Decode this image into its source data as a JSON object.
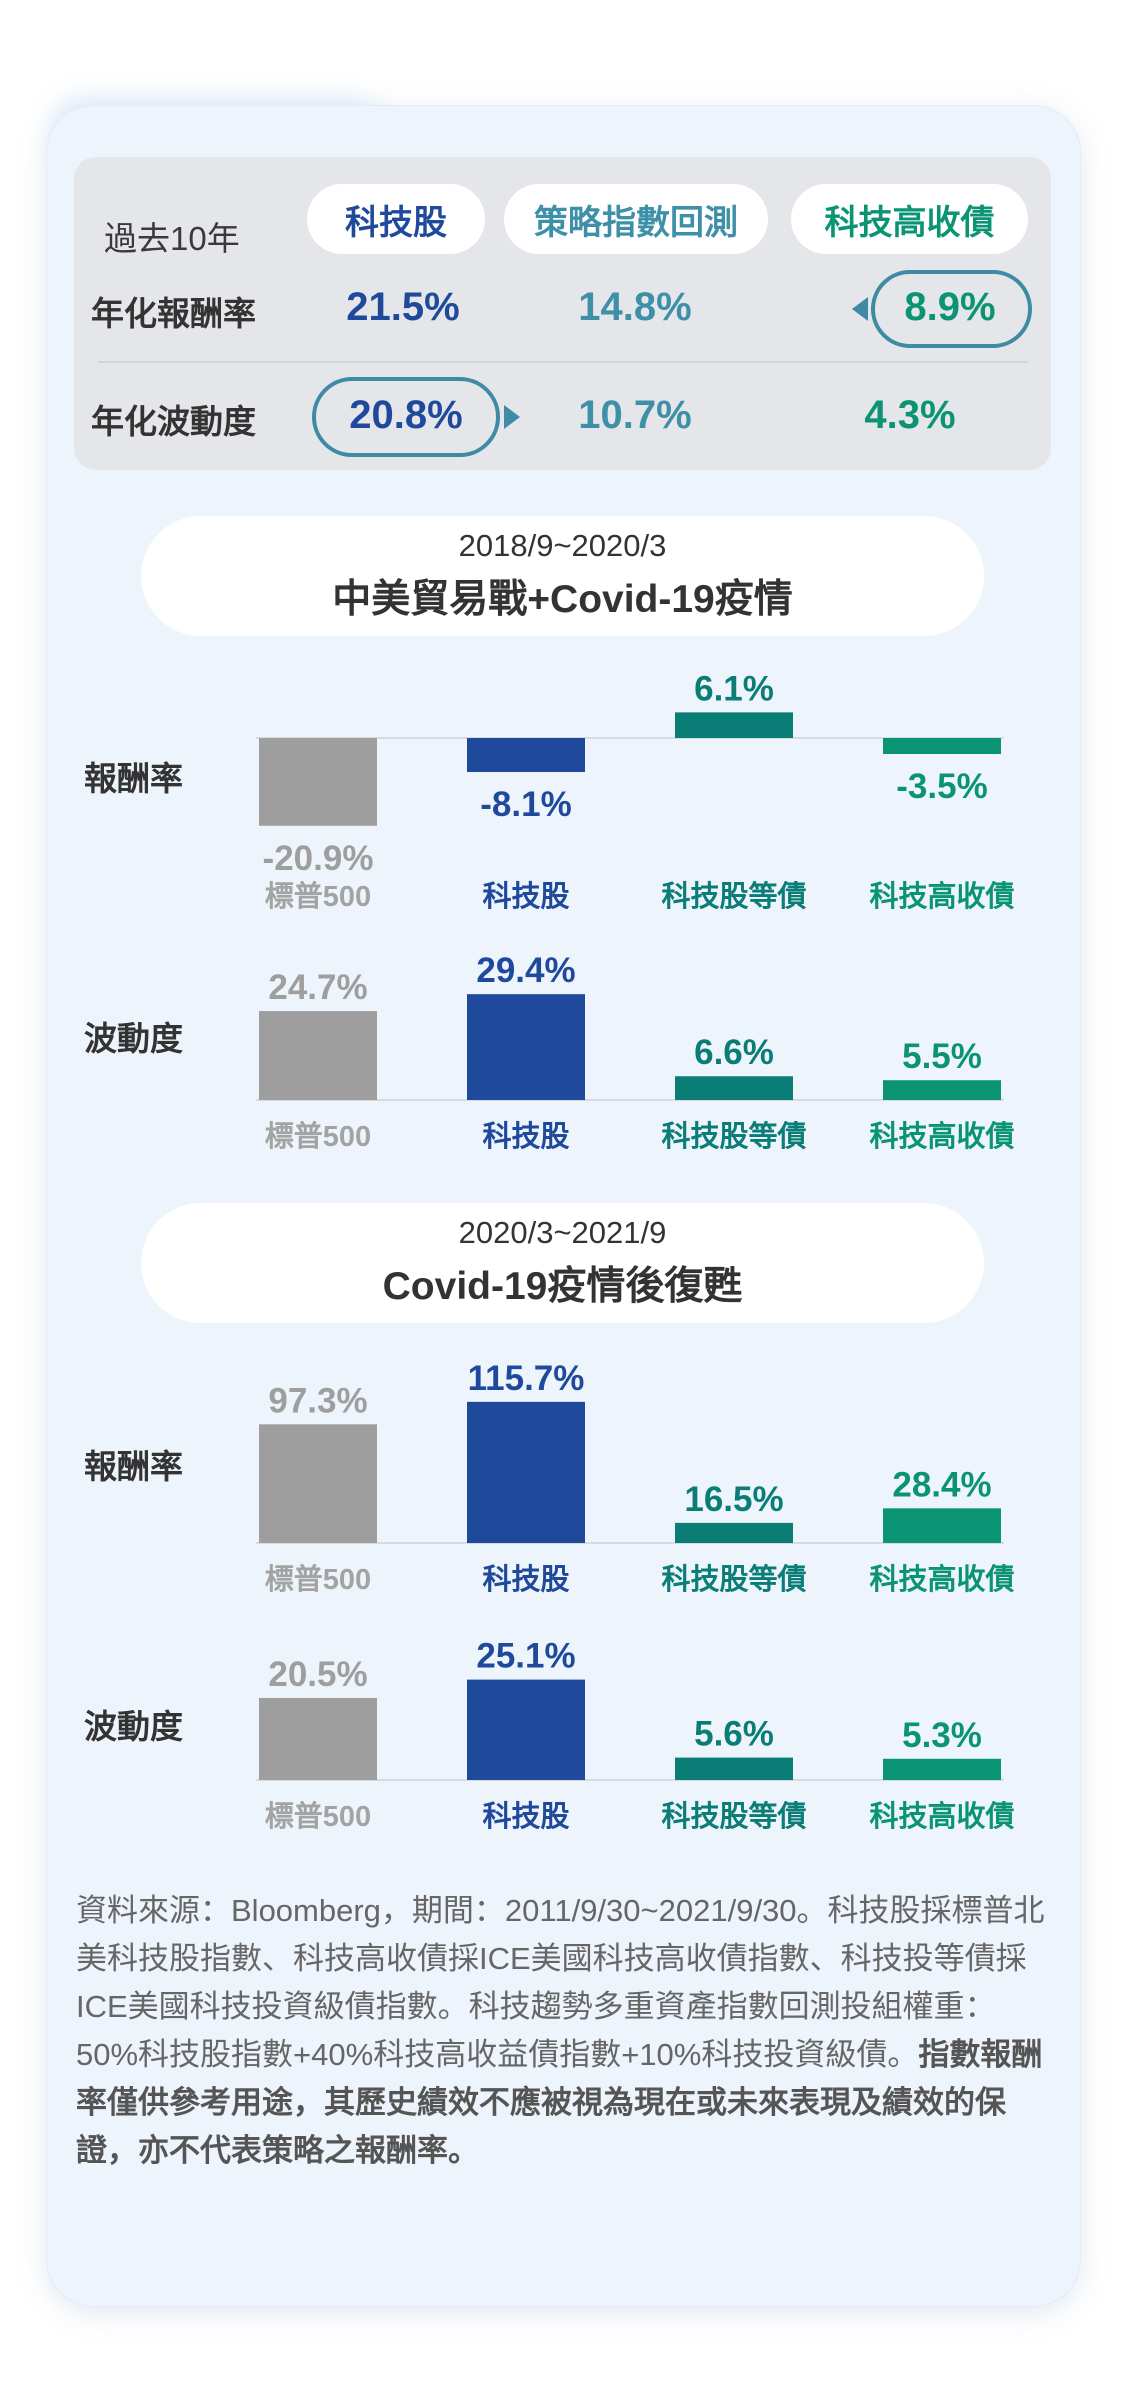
{
  "colors": {
    "sp500": "#9e9e9e",
    "tech": "#1f4a9c",
    "ig_bond": "#0b7d77",
    "hy_bond": "#0a9474",
    "strategy": "#3e8fa8",
    "highlight": "#3f8aa5"
  },
  "summary": {
    "period_label": "過去10年",
    "headers": [
      "科技股",
      "策略指數回測",
      "科技高收債"
    ],
    "rows": [
      {
        "label": "年化報酬率",
        "values": [
          "21.5%",
          "14.8%",
          "8.9%"
        ]
      },
      {
        "label": "年化波動度",
        "values": [
          "20.8%",
          "10.7%",
          "4.3%"
        ]
      }
    ]
  },
  "sections": [
    {
      "dates": "2018/9~2020/3",
      "title": "中美貿易戰+Covid-19疫情",
      "return_label": "報酬率",
      "vol_label": "波動度"
    },
    {
      "dates": "2020/3~2021/9",
      "title": "Covid-19疫情後復甦",
      "return_label": "報酬率",
      "vol_label": "波動度"
    }
  ],
  "chart_data": [
    {
      "type": "bar",
      "title": "報酬率",
      "categories": [
        "標普500",
        "科技股",
        "科技股等債",
        "科技高收債"
      ],
      "values": [
        -20.9,
        -8.1,
        6.1,
        -3.5
      ],
      "labels": [
        "-20.9%",
        "-8.1%",
        "6.1%",
        "-3.5%"
      ]
    },
    {
      "type": "bar",
      "title": "波動度",
      "categories": [
        "標普500",
        "科技股",
        "科技股等債",
        "科技高收債"
      ],
      "values": [
        24.7,
        29.4,
        6.6,
        5.5
      ],
      "labels": [
        "24.7%",
        "29.4%",
        "6.6%",
        "5.5%"
      ]
    },
    {
      "type": "bar",
      "title": "報酬率",
      "categories": [
        "標普500",
        "科技股",
        "科技股等債",
        "科技高收債"
      ],
      "values": [
        97.3,
        115.7,
        16.5,
        28.4
      ],
      "labels": [
        "97.3%",
        "115.7%",
        "16.5%",
        "28.4%"
      ]
    },
    {
      "type": "bar",
      "title": "波動度",
      "categories": [
        "標普500",
        "科技股",
        "科技股等債",
        "科技高收債"
      ],
      "values": [
        20.5,
        25.1,
        5.6,
        5.3
      ],
      "labels": [
        "20.5%",
        "25.1%",
        "5.6%",
        "5.3%"
      ]
    }
  ],
  "source": {
    "text": "資料來源：Bloomberg，期間：2011/9/30~2021/9/30。科技股採標普北美科技股指數、科技高收債採ICE美國科技高收債指數、科技投等債採ICE美國科技投資級債指數。科技趨勢多重資產指數回測投組權重：50%科技股指數+40%科技高收益債指數+10%科技投資級債。",
    "bold": "指數報酬率僅供參考用途，其歷史績效不應被視為現在或未來表現及績效的保證，亦不代表策略之報酬率。"
  }
}
